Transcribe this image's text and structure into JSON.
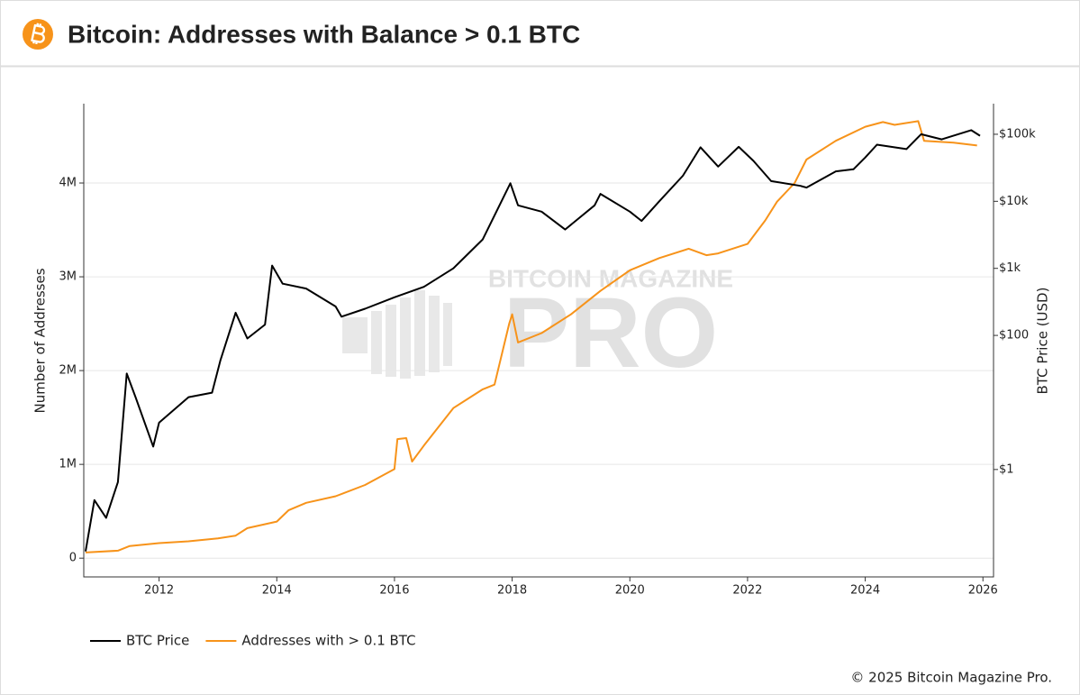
{
  "chart_data": {
    "type": "line",
    "title": "Bitcoin: Addresses with Balance > 0.1 BTC",
    "ylabel": "Number of Addresses",
    "y2label": "BTC Price (USD)",
    "watermark": [
      "BITCOIN MAGAZINE",
      "PRO"
    ],
    "copyright": "© 2025 Bitcoin Magazine Pro.",
    "xlim": [
      2010.72,
      2026.18
    ],
    "xticks": [
      2012,
      2014,
      2016,
      2018,
      2020,
      2022,
      2024,
      2026
    ],
    "ylim": [
      -200000,
      4846000
    ],
    "yticks": [
      0,
      {
        "value": 1000000,
        "label": "1M"
      },
      {
        "value": 2000000,
        "label": "2M"
      },
      {
        "value": 3000000,
        "label": "3M"
      },
      {
        "value": 4000000,
        "label": "4M"
      }
    ],
    "y2lim": [
      0.025,
      286000
    ],
    "y2log": true,
    "y2ticks": [
      {
        "value": 1,
        "label": "$1"
      },
      {
        "value": 100,
        "label": "$100"
      },
      {
        "value": 1000,
        "label": "$1k"
      },
      {
        "value": 10000,
        "label": "$10k"
      },
      {
        "value": 100000,
        "label": "$100k"
      }
    ],
    "grid": true,
    "legend": "bottom-left",
    "series": [
      {
        "name": "BTC Price",
        "color": "#000000",
        "axis": "y2",
        "x": [
          2010.75,
          2010.9,
          2011.1,
          2011.3,
          2011.45,
          2011.6,
          2011.9,
          2012.0,
          2012.5,
          2012.9,
          2013.04,
          2013.3,
          2013.5,
          2013.8,
          2013.92,
          2014.1,
          2014.5,
          2015.0,
          2015.1,
          2015.5,
          2016.0,
          2016.5,
          2017.0,
          2017.5,
          2017.97,
          2018.1,
          2018.5,
          2018.9,
          2019.4,
          2019.5,
          2020.0,
          2020.2,
          2020.5,
          2020.9,
          2021.2,
          2021.5,
          2021.85,
          2022.1,
          2022.4,
          2022.9,
          2023.0,
          2023.5,
          2023.8,
          2024.0,
          2024.2,
          2024.7,
          2024.95,
          2025.3,
          2025.8,
          2025.95
        ],
        "values": [
          0.06,
          0.35,
          0.19,
          0.65,
          27,
          12,
          2.2,
          5,
          12,
          14,
          42,
          218,
          90,
          145,
          1100,
          590,
          500,
          270,
          190,
          250,
          370,
          530,
          1000,
          2700,
          18600,
          8700,
          7000,
          3800,
          8700,
          12900,
          7000,
          5100,
          10000,
          24000,
          64000,
          33000,
          65000,
          40000,
          20000,
          17000,
          16000,
          28000,
          30000,
          45000,
          70000,
          60000,
          100000,
          84000,
          115000,
          95000
        ]
      },
      {
        "name": "Addresses with > 0.1 BTC",
        "color": "#f7931a",
        "axis": "y",
        "x": [
          2010.75,
          2011.3,
          2011.5,
          2012.0,
          2012.5,
          2013.0,
          2013.3,
          2013.5,
          2014.0,
          2014.2,
          2014.5,
          2015.0,
          2015.5,
          2016.0,
          2016.05,
          2016.2,
          2016.3,
          2016.5,
          2017.0,
          2017.5,
          2017.7,
          2017.95,
          2018.0,
          2018.1,
          2018.5,
          2019.0,
          2019.5,
          2020.0,
          2020.5,
          2021.0,
          2021.3,
          2021.5,
          2022.0,
          2022.3,
          2022.5,
          2022.8,
          2023.0,
          2023.5,
          2024.0,
          2024.3,
          2024.5,
          2024.9,
          2025.0,
          2025.5,
          2025.9
        ],
        "values": [
          60000,
          80000,
          130000,
          160000,
          180000,
          210000,
          240000,
          320000,
          390000,
          510000,
          590000,
          660000,
          780000,
          950000,
          1270000,
          1280000,
          1030000,
          1200000,
          1600000,
          1800000,
          1850000,
          2500000,
          2600000,
          2300000,
          2400000,
          2600000,
          2850000,
          3070000,
          3200000,
          3300000,
          3230000,
          3250000,
          3350000,
          3600000,
          3800000,
          4000000,
          4250000,
          4450000,
          4600000,
          4650000,
          4620000,
          4660000,
          4450000,
          4430000,
          4400000
        ]
      }
    ]
  }
}
